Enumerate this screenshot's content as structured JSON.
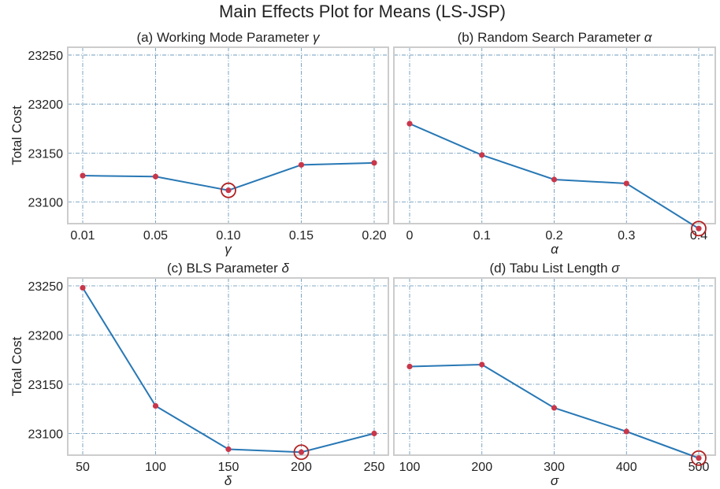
{
  "figure": {
    "suptitle": "Main Effects Plot for Means (LS-JSP)"
  },
  "chart_data": [
    {
      "type": "line",
      "title_prefix": "(a) Working Mode Parameter ",
      "title_symbol": "γ",
      "xlabel": "γ",
      "ylabel": "Total Cost",
      "categories": [
        "0.01",
        "0.05",
        "0.10",
        "0.15",
        "0.20"
      ],
      "values": [
        23127,
        23126,
        23112,
        23138,
        23140
      ],
      "optimal_index": 2,
      "ylim": [
        23078,
        23258
      ],
      "yticks": [
        23100,
        23150,
        23200,
        23250
      ],
      "grid": true
    },
    {
      "type": "line",
      "title_prefix": "(b) Random Search Parameter ",
      "title_symbol": "α",
      "xlabel": "α",
      "ylabel": "",
      "categories": [
        "0",
        "0.1",
        "0.2",
        "0.3",
        "0.4"
      ],
      "values": [
        23180,
        23148,
        23123,
        23119,
        23073
      ],
      "optimal_index": 4,
      "ylim": [
        23078,
        23258
      ],
      "yticks": [
        23100,
        23150,
        23200,
        23250
      ],
      "grid": true
    },
    {
      "type": "line",
      "title_prefix": "(c) BLS Parameter ",
      "title_symbol": "δ",
      "xlabel": "δ",
      "ylabel": "Total Cost",
      "categories": [
        "50",
        "100",
        "150",
        "200",
        "250"
      ],
      "values": [
        23248,
        23128,
        23084,
        23081,
        23100
      ],
      "optimal_index": 3,
      "ylim": [
        23078,
        23258
      ],
      "yticks": [
        23100,
        23150,
        23200,
        23250
      ],
      "grid": true
    },
    {
      "type": "line",
      "title_prefix": "(d) Tabu List Length ",
      "title_symbol": "σ",
      "xlabel": "σ",
      "ylabel": "",
      "categories": [
        "100",
        "200",
        "300",
        "400",
        "500"
      ],
      "values": [
        23168,
        23170,
        23126,
        23102,
        23075
      ],
      "optimal_index": 4,
      "ylim": [
        23078,
        23258
      ],
      "yticks": [
        23100,
        23150,
        23200,
        23250
      ],
      "grid": true
    }
  ]
}
